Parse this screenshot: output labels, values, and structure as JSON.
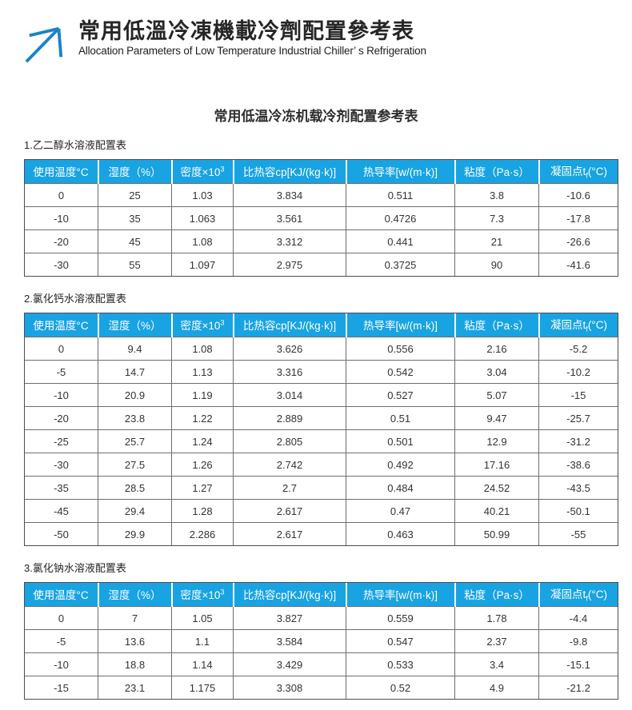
{
  "header": {
    "title": "常用低溫冷凍機載冷劑配置參考表",
    "subtitle": "Allocation Parameters of Low Temperature Industrial Chiller’ s Refrigeration",
    "logo_icon": "arrow-up-right-icon"
  },
  "doc_title": "常用低温冷冻机载冷剂配置参考表",
  "colors": {
    "table_header_blue": "#18a3e3",
    "logo_blue": "#1c82c6",
    "table_border": "#6e6e6e",
    "text": "#333333"
  },
  "columns": [
    {
      "label": "使用温度°C"
    },
    {
      "label": "湿度（%）"
    },
    {
      "label": "密度×10",
      "sup": "3"
    },
    {
      "label": "比热容cp[KJ/(kg·k)]"
    },
    {
      "label": "热导率[w/(m·k)]"
    },
    {
      "label": "粘度（Pa·s）"
    },
    {
      "label": "凝固点t",
      "sub": "f",
      "suffix": "(°C)"
    }
  ],
  "sections": [
    {
      "label": "1.乙二醇水溶液配置表",
      "rows": [
        [
          "0",
          "25",
          "1.03",
          "3.834",
          "0.511",
          "3.8",
          "-10.6"
        ],
        [
          "-10",
          "35",
          "1.063",
          "3.561",
          "0.4726",
          "7.3",
          "-17.8"
        ],
        [
          "-20",
          "45",
          "1.08",
          "3.312",
          "0.441",
          "21",
          "-26.6"
        ],
        [
          "-30",
          "55",
          "1.097",
          "2.975",
          "0.3725",
          "90",
          "-41.6"
        ]
      ]
    },
    {
      "label": "2.氯化钙水溶液配置表",
      "rows": [
        [
          "0",
          "9.4",
          "1.08",
          "3.626",
          "0.556",
          "2.16",
          "-5.2"
        ],
        [
          "-5",
          "14.7",
          "1.13",
          "3.316",
          "0.542",
          "3.04",
          "-10.2"
        ],
        [
          "-10",
          "20.9",
          "1.19",
          "3.014",
          "0.527",
          "5.07",
          "-15"
        ],
        [
          "-20",
          "23.8",
          "1.22",
          "2.889",
          "0.51",
          "9.47",
          "-25.7"
        ],
        [
          "-25",
          "25.7",
          "1.24",
          "2.805",
          "0.501",
          "12.9",
          "-31.2"
        ],
        [
          "-30",
          "27.5",
          "1.26",
          "2.742",
          "0.492",
          "17.16",
          "-38.6"
        ],
        [
          "-35",
          "28.5",
          "1.27",
          "2.7",
          "0.484",
          "24.52",
          "-43.5"
        ],
        [
          "-45",
          "29.4",
          "1.28",
          "2.617",
          "0.47",
          "40.21",
          "-50.1"
        ],
        [
          "-50",
          "29.9",
          "2.286",
          "2.617",
          "0.463",
          "50.99",
          "-55"
        ]
      ]
    },
    {
      "label": "3.氯化钠水溶液配置表",
      "rows": [
        [
          "0",
          "7",
          "1.05",
          "3.827",
          "0.559",
          "1.78",
          "-4.4"
        ],
        [
          "-5",
          "13.6",
          "1.1",
          "3.584",
          "0.547",
          "2.37",
          "-9.8"
        ],
        [
          "-10",
          "18.8",
          "1.14",
          "3.429",
          "0.533",
          "3.4",
          "-15.1"
        ],
        [
          "-15",
          "23.1",
          "1.175",
          "3.308",
          "0.52",
          "4.9",
          "-21.2"
        ]
      ]
    }
  ]
}
